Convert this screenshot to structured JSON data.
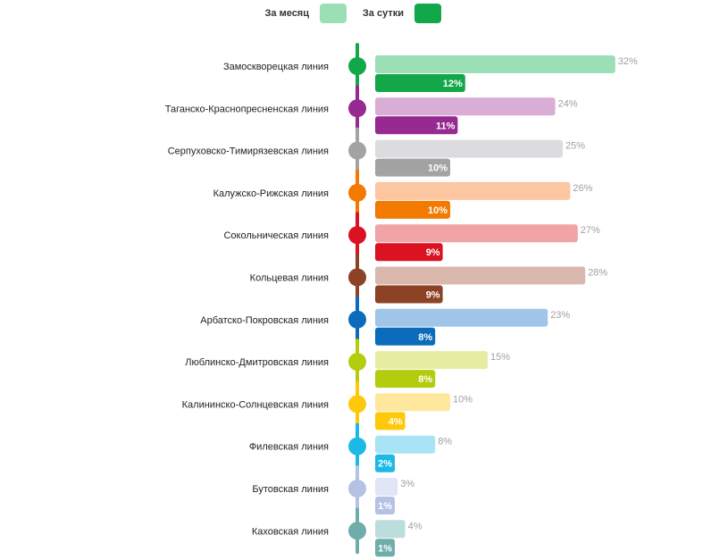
{
  "legend": [
    {
      "label": "За месяц",
      "color": "#9ADFB5"
    },
    {
      "label": "За сутки",
      "color": "#12A84A"
    }
  ],
  "chart_data": {
    "type": "bar",
    "orientation": "horizontal",
    "categories": [
      "Замоскворецкая линия",
      "Таганско-Краснопресненская линия",
      "Серпуховско-Тимирязевская линия",
      "Калужско-Рижская линия",
      "Сокольническая линия",
      "Кольцевая линия",
      "Арбатско-Покровская линия",
      "Люблинско-Дмитровская линия",
      "Калининско-Солнцевская линия",
      "Филевская линия",
      "Бутовская линия",
      "Каховская линия"
    ],
    "series": [
      {
        "name": "За месяц",
        "values": [
          32,
          24,
          25,
          26,
          27,
          28,
          23,
          15,
          10,
          8,
          3,
          4
        ]
      },
      {
        "name": "За сутки",
        "values": [
          12,
          11,
          10,
          10,
          9,
          9,
          8,
          8,
          4,
          2,
          1,
          1
        ]
      }
    ],
    "value_suffix": "%",
    "line_colors": [
      "#12A84A",
      "#962A91",
      "#A3A3A3",
      "#F27A00",
      "#DA1221",
      "#8D4226",
      "#0A6CBA",
      "#B3CC0D",
      "#FFC90B",
      "#1AB9E6",
      "#B5C2E4",
      "#6FADAB"
    ],
    "month_colors": [
      "#9ADFB5",
      "#D9ADD6",
      "#DCDCDE",
      "#FCC6A0",
      "#F0A4A6",
      "#DAB8AE",
      "#9FC6E8",
      "#E6EDA2",
      "#FFE79D",
      "#A8E4F6",
      "#E0E6F5",
      "#BBDDDC"
    ],
    "xlim": [
      0,
      32
    ],
    "grid": false,
    "legend_position": "top-center"
  }
}
